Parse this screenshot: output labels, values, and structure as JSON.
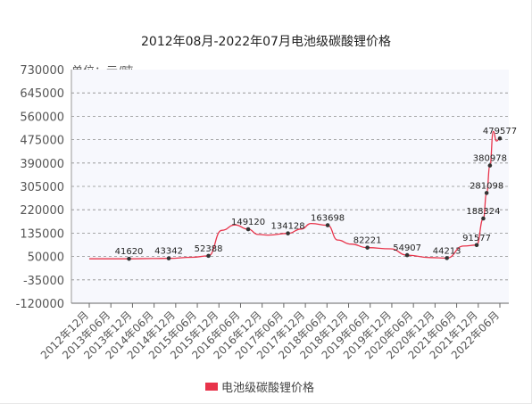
{
  "chart_data": {
    "type": "line",
    "title": "2012年08月-2022年07月电池级碳酸锂价格",
    "unit_label": "单位：元/吨",
    "ylim": [
      -120000,
      730000
    ],
    "yticks": [
      730000,
      645000,
      560000,
      475000,
      390000,
      305000,
      220000,
      135000,
      50000,
      -35000,
      -120000
    ],
    "ytick_labels": [
      "730000",
      "645000",
      "560000",
      "475000",
      "390000",
      "305000",
      "220000",
      "135000",
      "50000",
      "-35000",
      "-120000"
    ],
    "x_tick_labels": [
      "2012年12月",
      "2013年06月",
      "2013年12月",
      "2014年06月",
      "2014年12月",
      "2015年06月",
      "2015年12月",
      "2016年06月",
      "2016年12月",
      "2017年06月",
      "2017年12月",
      "2018年06月",
      "2018年12月",
      "2019年06月",
      "2019年12月",
      "2020年06月",
      "2020年12月",
      "2021年06月",
      "2021年12月",
      "2022年06月"
    ],
    "grid": true,
    "legend_position": "bottom",
    "series": [
      {
        "name": "电池级碳酸锂价格",
        "color": "#e8334a",
        "points": [
          {
            "x": "2012-08",
            "y": 41620
          },
          {
            "x": "2013-03",
            "y": 41620
          },
          {
            "x": "2013-08",
            "y": 41620,
            "label": "41620"
          },
          {
            "x": "2014-03",
            "y": 42500
          },
          {
            "x": "2014-08",
            "y": 43342,
            "label": "43342"
          },
          {
            "x": "2015-03",
            "y": 47000
          },
          {
            "x": "2015-08",
            "y": 52388,
            "label": "52388"
          },
          {
            "x": "2015-12",
            "y": 145000
          },
          {
            "x": "2016-04",
            "y": 165000
          },
          {
            "x": "2016-08",
            "y": 149120,
            "label": "149120"
          },
          {
            "x": "2016-11",
            "y": 130000
          },
          {
            "x": "2017-02",
            "y": 128000
          },
          {
            "x": "2017-08",
            "y": 134128,
            "label": "134128"
          },
          {
            "x": "2017-12",
            "y": 150000
          },
          {
            "x": "2018-03",
            "y": 170000
          },
          {
            "x": "2018-08",
            "y": 163698,
            "label": "163698"
          },
          {
            "x": "2018-11",
            "y": 110000
          },
          {
            "x": "2019-03",
            "y": 95000
          },
          {
            "x": "2019-08",
            "y": 82221,
            "label": "82221"
          },
          {
            "x": "2020-03",
            "y": 78000
          },
          {
            "x": "2020-08",
            "y": 54907,
            "label": "54907"
          },
          {
            "x": "2021-03",
            "y": 46000
          },
          {
            "x": "2021-08",
            "y": 44213,
            "label": "44213"
          },
          {
            "x": "2022-01",
            "y": 88000
          },
          {
            "x": "2022-05",
            "y": 91577,
            "label": "91577"
          },
          {
            "x": "2022-07",
            "y": 188324,
            "label": "188324"
          },
          {
            "x": "2022-08",
            "y": 281098,
            "label": "281098"
          },
          {
            "x": "2022-09",
            "y": 380978,
            "label": "380978"
          },
          {
            "x": "2022-10",
            "y": 505000
          },
          {
            "x": "2022-11",
            "y": 470000
          },
          {
            "x": "2022-12",
            "y": 479577,
            "label": "479577"
          }
        ]
      }
    ]
  }
}
